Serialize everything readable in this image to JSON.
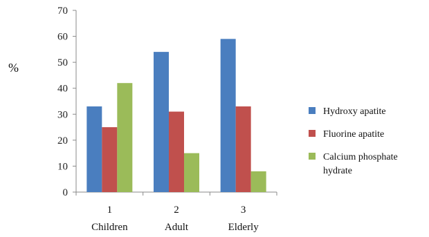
{
  "chart_data": {
    "type": "bar",
    "ylabel": "%",
    "ylim": [
      0,
      70
    ],
    "yticks": [
      0,
      10,
      20,
      30,
      40,
      50,
      60,
      70
    ],
    "categories": [
      {
        "num": "1",
        "name": "Children"
      },
      {
        "num": "2",
        "name": "Adult"
      },
      {
        "num": "3",
        "name": "Elderly"
      }
    ],
    "series": [
      {
        "name": "Hydroxy apatite",
        "color": "#4a7ebf",
        "values": [
          33,
          54,
          59
        ]
      },
      {
        "name": "Fluorine apatite",
        "color": "#c0504d",
        "values": [
          25,
          31,
          33
        ]
      },
      {
        "name_lines": [
          "Calcium phosphate",
          "hydrate"
        ],
        "color": "#9bbb59",
        "values": [
          42,
          15,
          8
        ]
      }
    ],
    "grid": false,
    "legend": "right"
  }
}
